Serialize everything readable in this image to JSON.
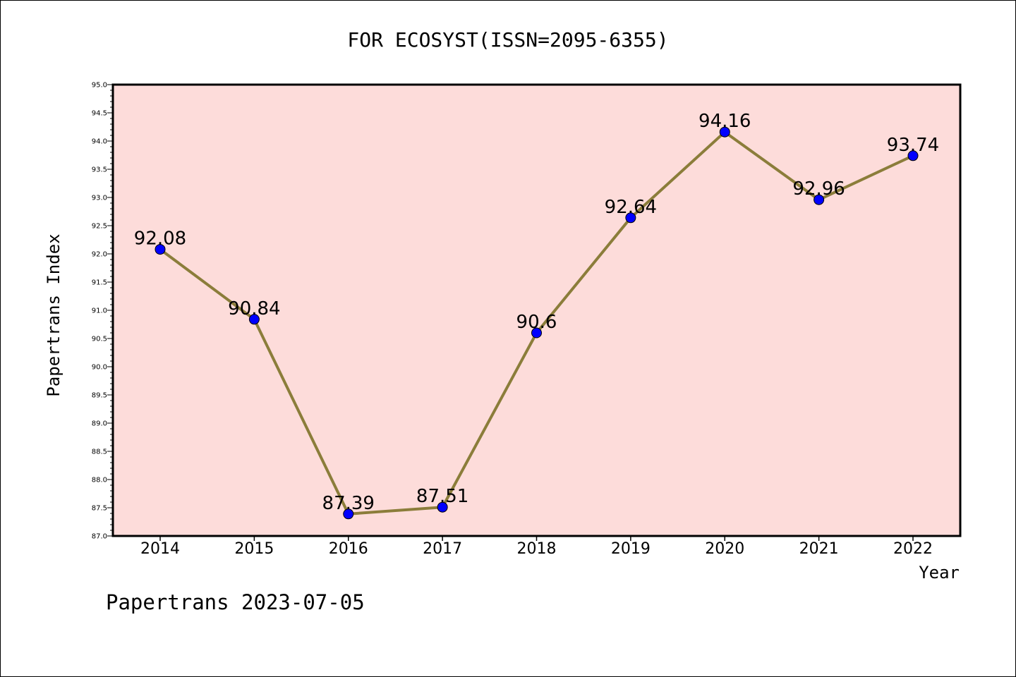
{
  "chart_data": {
    "type": "line",
    "title": "FOR ECOSYST(ISSN=2095-6355)",
    "xlabel": "Year",
    "ylabel": "Papertrans Index",
    "categories": [
      "2014",
      "2015",
      "2016",
      "2017",
      "2018",
      "2019",
      "2020",
      "2021",
      "2022"
    ],
    "series": [
      {
        "values": [
          92.08,
          90.84,
          87.39,
          87.51,
          90.6,
          92.64,
          94.16,
          92.96,
          93.74
        ],
        "labels": [
          "92.08",
          "90.84",
          "87.39",
          "87.51",
          "90.6",
          "92.64",
          "94.16",
          "92.96",
          "93.74"
        ],
        "line_color": "#8B7D3A",
        "marker_color": "#0000FF"
      }
    ],
    "ylim": [
      87.0,
      95.0
    ],
    "yticks": [
      "87.0",
      "87.5",
      "88.0",
      "88.5",
      "89.0",
      "89.5",
      "90.0",
      "90.5",
      "91.0",
      "91.5",
      "92.0",
      "92.5",
      "93.0",
      "93.5",
      "94.0",
      "94.5",
      "95.0"
    ],
    "plot_background": "#FDDCDA",
    "grid": false
  },
  "footer": {
    "text": "Papertrans 2023-07-05"
  }
}
